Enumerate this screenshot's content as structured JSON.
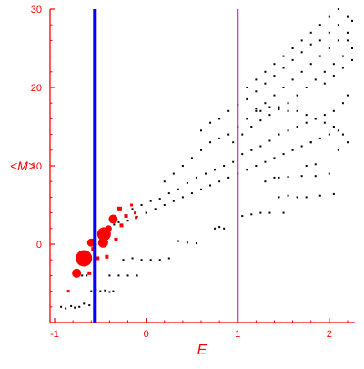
{
  "chart_data": {
    "type": "scatter",
    "title": "",
    "xlabel": "E",
    "ylabel": "<M>",
    "xlim": [
      -1.05,
      2.28
    ],
    "ylim": [
      -10,
      30
    ],
    "xticks": [
      -1,
      0,
      1,
      2
    ],
    "yticks": [
      0,
      10,
      20,
      30
    ],
    "xtick_labels": [
      "-1",
      "0",
      "1",
      "2"
    ],
    "ytick_labels": [
      "0",
      "10",
      "20",
      "30"
    ],
    "grid": false,
    "vertical_lines": [
      {
        "x": -0.56,
        "color": "#0000ff"
      },
      {
        "x": 1.0,
        "color": "#cc00cc"
      }
    ],
    "series": [
      {
        "color": "#000000",
        "points": [
          [
            -0.93,
            -8.0
          ],
          [
            -0.88,
            -8.2
          ],
          [
            -0.82,
            -7.9
          ],
          [
            -0.78,
            -8.1
          ],
          [
            -0.73,
            -8.0
          ],
          [
            -0.68,
            -7.6
          ],
          [
            -0.62,
            -7.8
          ],
          [
            -0.6,
            -6.0
          ],
          [
            -0.55,
            -5.8
          ],
          [
            -0.5,
            -6.0
          ],
          [
            -0.45,
            -5.9
          ],
          [
            -0.4,
            -6.1
          ],
          [
            -0.36,
            -6.0
          ],
          [
            -0.7,
            -4.0
          ],
          [
            -0.65,
            -4.0
          ],
          [
            -0.4,
            -4.0
          ],
          [
            -0.3,
            -4.0
          ],
          [
            -0.2,
            -4.0
          ],
          [
            -0.1,
            -4.0
          ],
          [
            -0.25,
            -2.0
          ],
          [
            -0.15,
            -1.8
          ],
          [
            -0.05,
            -2.0
          ],
          [
            0.05,
            -2.0
          ],
          [
            0.15,
            -2.0
          ],
          [
            0.25,
            -1.8
          ],
          [
            0.35,
            0.4
          ],
          [
            0.45,
            0.2
          ],
          [
            0.55,
            0.1
          ],
          [
            0.75,
            2.0
          ],
          [
            0.8,
            2.2
          ],
          [
            0.85,
            2.0
          ],
          [
            1.05,
            3.6
          ],
          [
            1.15,
            3.8
          ],
          [
            1.25,
            4.0
          ],
          [
            1.35,
            4.0
          ],
          [
            1.5,
            4.0
          ],
          [
            1.45,
            6.0
          ],
          [
            1.55,
            6.2
          ],
          [
            1.65,
            6.0
          ],
          [
            1.75,
            6.0
          ],
          [
            1.9,
            6.2
          ],
          [
            2.05,
            6.4
          ],
          [
            1.3,
            8.0
          ],
          [
            1.4,
            8.5
          ],
          [
            1.45,
            8.5
          ],
          [
            1.55,
            8.6
          ],
          [
            1.7,
            8.7
          ],
          [
            1.85,
            8.7
          ],
          [
            2.0,
            9.0
          ],
          [
            1.75,
            10.0
          ],
          [
            1.85,
            10.2
          ],
          [
            1.8,
            13.0
          ],
          [
            2.1,
            12.0
          ],
          [
            2.2,
            13.0
          ],
          [
            2.15,
            14.0
          ],
          [
            2.05,
            15.0
          ],
          [
            1.95,
            15.5
          ],
          [
            1.85,
            16.0
          ],
          [
            1.75,
            16.5
          ],
          [
            1.65,
            17.0
          ],
          [
            1.55,
            17.0
          ],
          [
            1.45,
            17.5
          ],
          [
            1.35,
            17.5
          ],
          [
            1.25,
            17.0
          ],
          [
            1.2,
            17.3
          ],
          [
            -0.55,
            0.0
          ],
          [
            -0.5,
            1.0
          ],
          [
            -0.45,
            1.5
          ],
          [
            -0.4,
            2.0
          ],
          [
            -0.35,
            2.5
          ],
          [
            -0.3,
            2.8
          ],
          [
            -0.2,
            3.0
          ],
          [
            -0.1,
            3.5
          ],
          [
            0.0,
            4.0
          ],
          [
            0.1,
            4.5
          ],
          [
            0.2,
            5.0
          ],
          [
            0.3,
            5.5
          ],
          [
            0.4,
            6.0
          ],
          [
            0.5,
            6.5
          ],
          [
            0.6,
            7.0
          ],
          [
            0.7,
            7.5
          ],
          [
            0.8,
            8.0
          ],
          [
            0.9,
            8.5
          ],
          [
            1.0,
            9.0
          ],
          [
            1.1,
            9.5
          ],
          [
            1.2,
            10.0
          ],
          [
            1.3,
            10.5
          ],
          [
            1.4,
            11.0
          ],
          [
            1.5,
            11.5
          ],
          [
            1.6,
            12.0
          ],
          [
            1.7,
            12.5
          ],
          [
            1.8,
            13.0
          ],
          [
            1.9,
            13.5
          ],
          [
            2.0,
            14.0
          ],
          [
            2.1,
            14.5
          ],
          [
            -0.15,
            4.5
          ],
          [
            -0.05,
            5.0
          ],
          [
            0.05,
            5.5
          ],
          [
            0.15,
            5.8
          ],
          [
            0.25,
            6.5
          ],
          [
            0.35,
            7.0
          ],
          [
            0.45,
            7.8
          ],
          [
            0.55,
            8.5
          ],
          [
            0.65,
            9.0
          ],
          [
            0.75,
            9.5
          ],
          [
            0.85,
            10.0
          ],
          [
            0.95,
            10.5
          ],
          [
            1.05,
            11.5
          ],
          [
            1.15,
            12.0
          ],
          [
            1.25,
            12.5
          ],
          [
            1.35,
            13.2
          ],
          [
            1.45,
            14.0
          ],
          [
            1.55,
            14.5
          ],
          [
            1.65,
            15.0
          ],
          [
            1.75,
            15.5
          ],
          [
            1.85,
            16.0
          ],
          [
            1.95,
            16.5
          ],
          [
            2.05,
            17.0
          ],
          [
            2.15,
            18.0
          ],
          [
            2.2,
            19.0
          ],
          [
            0.2,
            8.0
          ],
          [
            0.3,
            9.0
          ],
          [
            0.4,
            10.0
          ],
          [
            0.5,
            11.0
          ],
          [
            0.6,
            12.0
          ],
          [
            0.7,
            13.0
          ],
          [
            0.8,
            13.5
          ],
          [
            0.9,
            14.0
          ],
          [
            1.0,
            15.0
          ],
          [
            1.1,
            16.0
          ],
          [
            1.2,
            17.0
          ],
          [
            1.3,
            18.0
          ],
          [
            1.4,
            19.0
          ],
          [
            1.5,
            20.0
          ],
          [
            1.6,
            21.0
          ],
          [
            1.7,
            22.0
          ],
          [
            1.8,
            23.0
          ],
          [
            1.9,
            24.0
          ],
          [
            2.0,
            25.0
          ],
          [
            2.1,
            26.0
          ],
          [
            2.2,
            27.0
          ],
          [
            0.6,
            14.5
          ],
          [
            0.7,
            15.5
          ],
          [
            0.8,
            16.0
          ],
          [
            0.9,
            17.0
          ],
          [
            1.0,
            17.8
          ],
          [
            1.1,
            18.5
          ],
          [
            1.2,
            19.5
          ],
          [
            1.3,
            20.5
          ],
          [
            1.4,
            21.5
          ],
          [
            1.5,
            22.5
          ],
          [
            1.6,
            23.5
          ],
          [
            1.7,
            24.5
          ],
          [
            1.8,
            25.5
          ],
          [
            1.9,
            26.0
          ],
          [
            2.0,
            27.0
          ],
          [
            2.1,
            28.0
          ],
          [
            2.2,
            29.0
          ],
          [
            0.95,
            13.0
          ],
          [
            1.05,
            14.0
          ],
          [
            1.15,
            15.0
          ],
          [
            1.25,
            15.8
          ],
          [
            1.35,
            16.5
          ],
          [
            1.45,
            17.2
          ],
          [
            1.55,
            18.0
          ],
          [
            1.65,
            19.0
          ],
          [
            1.75,
            20.0
          ],
          [
            1.85,
            21.0
          ],
          [
            1.95,
            22.0
          ],
          [
            2.05,
            23.0
          ],
          [
            2.15,
            24.0
          ],
          [
            2.25,
            25.0
          ],
          [
            1.1,
            20.0
          ],
          [
            1.2,
            21.0
          ],
          [
            1.3,
            22.0
          ],
          [
            1.4,
            23.0
          ],
          [
            1.5,
            24.0
          ],
          [
            1.6,
            25.0
          ],
          [
            1.7,
            26.0
          ],
          [
            1.8,
            27.0
          ],
          [
            1.9,
            28.0
          ],
          [
            2.0,
            29.0
          ],
          [
            2.1,
            30.0
          ],
          [
            1.95,
            20.5
          ],
          [
            2.05,
            21.5
          ],
          [
            2.15,
            22.5
          ],
          [
            2.25,
            23.5
          ],
          [
            2.2,
            26.0
          ],
          [
            2.25,
            28.5
          ]
        ]
      },
      {
        "color": "#ff0000",
        "points": [
          {
            "x": -0.85,
            "y": -6.0,
            "size": 1.5
          },
          {
            "x": -0.76,
            "y": -3.7,
            "size": 5
          },
          {
            "x": -0.68,
            "y": -1.8,
            "size": 9
          },
          {
            "x": -0.62,
            "y": -3.7,
            "size": 2
          },
          {
            "x": -0.58,
            "y": -0.6,
            "size": 2
          },
          {
            "x": -0.6,
            "y": 0.2,
            "size": 4.5
          },
          {
            "x": -0.53,
            "y": -1.8,
            "size": 2
          },
          {
            "x": -0.46,
            "y": 1.3,
            "size": 7.5
          },
          {
            "x": -0.47,
            "y": 0.2,
            "size": 5.5
          },
          {
            "x": -0.43,
            "y": -1.6,
            "size": 2
          },
          {
            "x": -0.41,
            "y": 2.0,
            "size": 3.5
          },
          {
            "x": -0.36,
            "y": 3.2,
            "size": 5
          },
          {
            "x": -0.33,
            "y": 0.6,
            "size": 2
          },
          {
            "x": -0.29,
            "y": 4.5,
            "size": 2.5
          },
          {
            "x": -0.27,
            "y": 2.4,
            "size": 2
          },
          {
            "x": -0.22,
            "y": 3.6,
            "size": 2
          },
          {
            "x": -0.16,
            "y": 5.0,
            "size": 1.5
          },
          {
            "x": -0.12,
            "y": 4.0,
            "size": 1.5
          },
          {
            "x": -0.11,
            "y": 3.4,
            "size": 1.5
          }
        ]
      }
    ]
  }
}
